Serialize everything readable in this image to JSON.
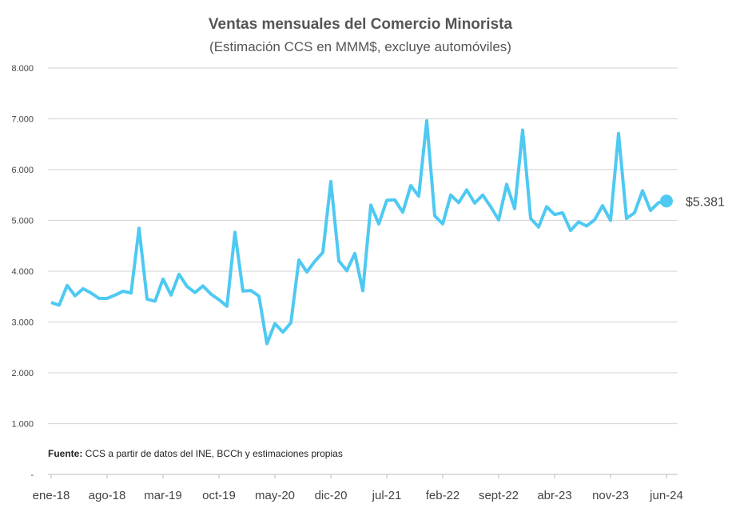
{
  "chart_data": {
    "type": "line",
    "title": "Ventas mensuales del Comercio Minorista",
    "subtitle": "(Estimación CCS en MMM$, excluye automóviles)",
    "source_label": "Fuente:",
    "source_text": " CCS a partir de datos del INE, BCCh y estimaciones propias",
    "ylim": [
      0,
      8000
    ],
    "y_ticks": [
      0,
      1000,
      2000,
      3000,
      4000,
      5000,
      6000,
      7000,
      8000
    ],
    "y_tick_labels": [
      "-",
      "1.000",
      "2.000",
      "3.000",
      "4.000",
      "5.000",
      "6.000",
      "7.000",
      "8.000"
    ],
    "x_tick_labels": [
      "ene-18",
      "ago-18",
      "mar-19",
      "oct-19",
      "may-20",
      "dic-20",
      "jul-21",
      "feb-22",
      "sept-22",
      "abr-23",
      "nov-23",
      "jun-24"
    ],
    "x_tick_every": 7,
    "grid": true,
    "color": "#4ec9f2",
    "end_label": "$5.381",
    "values": [
      3385,
      3330,
      3720,
      3515,
      3655,
      3570,
      3465,
      3465,
      3530,
      3605,
      3570,
      4845,
      3450,
      3410,
      3845,
      3530,
      3940,
      3700,
      3580,
      3710,
      3550,
      3440,
      3310,
      4765,
      3610,
      3620,
      3510,
      2575,
      2970,
      2800,
      2985,
      4220,
      3985,
      4195,
      4370,
      5765,
      4205,
      4010,
      4350,
      3615,
      5300,
      4930,
      5395,
      5405,
      5160,
      5685,
      5475,
      6960,
      5090,
      4930,
      5500,
      5350,
      5600,
      5340,
      5500,
      5270,
      5010,
      5710,
      5230,
      6780,
      5040,
      4870,
      5270,
      5115,
      5150,
      4800,
      4970,
      4890,
      5010,
      5290,
      5000,
      6710,
      5040,
      5150,
      5585,
      5195,
      5350,
      5381
    ]
  }
}
